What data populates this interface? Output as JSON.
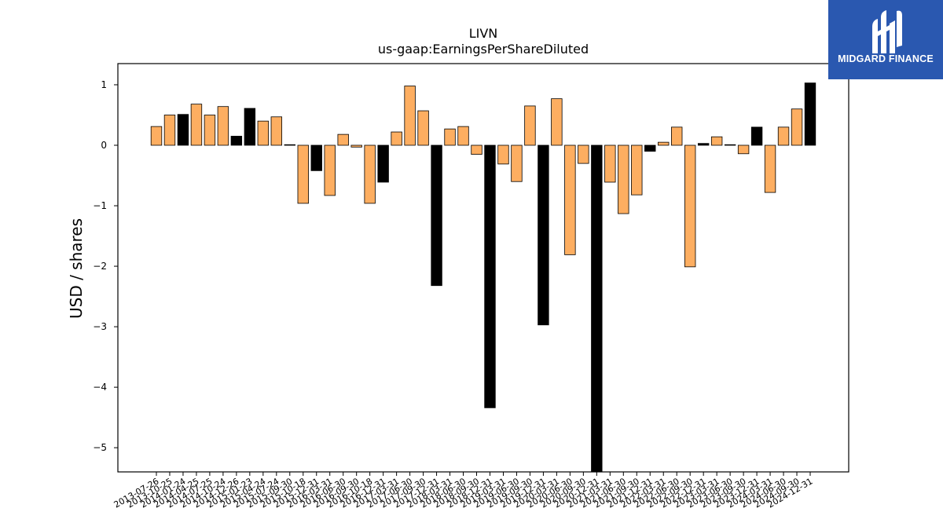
{
  "brand": {
    "name": "MIDGARD FINANCE",
    "bg_color": "#2a58b0",
    "icon": "midgard-logo-mark"
  },
  "chart_data": {
    "type": "bar",
    "title": "LIVN",
    "subtitle": "us-gaap:EarningsPerShareDiluted",
    "ylabel": "USD / shares",
    "xlabel": "",
    "ylim": [
      -5.4,
      1.35
    ],
    "yticks": [
      1,
      0,
      -1,
      -2,
      -3,
      -4,
      -5
    ],
    "ytick_labels": [
      "1",
      "0",
      "−1",
      "−2",
      "−3",
      "−4",
      "−5"
    ],
    "colors": {
      "quarter": "#fdae61",
      "annual": "#000000",
      "edge": "#000000"
    },
    "categories": [
      "2013-07-26",
      "2013-10-25",
      "2014-01-24",
      "2014-04-25",
      "2014-07-25",
      "2014-10-24",
      "2014-12-26",
      "2015-01-23",
      "2015-04-24",
      "2015-07-24",
      "2015-09-30",
      "2015-10-18",
      "2015-12-31",
      "2016-03-31",
      "2016-06-30",
      "2016-09-30",
      "2016-10-18",
      "2016-12-31",
      "2017-03-31",
      "2017-06-30",
      "2017-09-30",
      "2017-12-31",
      "2018-03-31",
      "2018-06-30",
      "2018-09-30",
      "2018-12-31",
      "2019-03-31",
      "2019-06-30",
      "2019-09-30",
      "2019-12-31",
      "2020-03-31",
      "2020-06-30",
      "2020-09-30",
      "2020-12-31",
      "2021-03-31",
      "2021-06-30",
      "2021-09-30",
      "2021-12-31",
      "2022-03-31",
      "2022-06-30",
      "2022-09-30",
      "2022-12-31",
      "2023-03-31",
      "2023-06-30",
      "2023-09-30",
      "2023-12-31",
      "2024-03-31",
      "2024-06-30",
      "2024-09-30",
      "2024-12-31"
    ],
    "values": [
      0.31,
      0.5,
      0.51,
      0.68,
      0.5,
      0.64,
      0.15,
      0.61,
      0.4,
      0.47,
      0.01,
      -0.96,
      -0.42,
      -0.83,
      0.18,
      -0.03,
      -0.96,
      -0.61,
      0.22,
      0.98,
      0.57,
      -2.32,
      0.27,
      0.31,
      -0.15,
      -4.34,
      -0.31,
      -0.6,
      0.65,
      -2.97,
      0.77,
      -1.81,
      -0.3,
      -5.4,
      -0.61,
      -1.13,
      -0.82,
      -0.1,
      0.05,
      0.3,
      -2.01,
      0.03,
      0.14,
      0.01,
      -0.14,
      0.3,
      -0.78,
      0.3,
      0.6,
      1.03
    ],
    "bar_type": [
      "quarter",
      "quarter",
      "annual",
      "quarter",
      "quarter",
      "quarter",
      "annual",
      "annual",
      "quarter",
      "quarter",
      "annual",
      "quarter",
      "annual",
      "quarter",
      "quarter",
      "quarter",
      "quarter",
      "annual",
      "quarter",
      "quarter",
      "quarter",
      "annual",
      "quarter",
      "quarter",
      "quarter",
      "annual",
      "quarter",
      "quarter",
      "quarter",
      "annual",
      "quarter",
      "quarter",
      "quarter",
      "annual",
      "quarter",
      "quarter",
      "quarter",
      "annual",
      "quarter",
      "quarter",
      "quarter",
      "annual",
      "quarter",
      "annual",
      "quarter",
      "annual",
      "quarter",
      "quarter",
      "quarter",
      "annual"
    ]
  }
}
